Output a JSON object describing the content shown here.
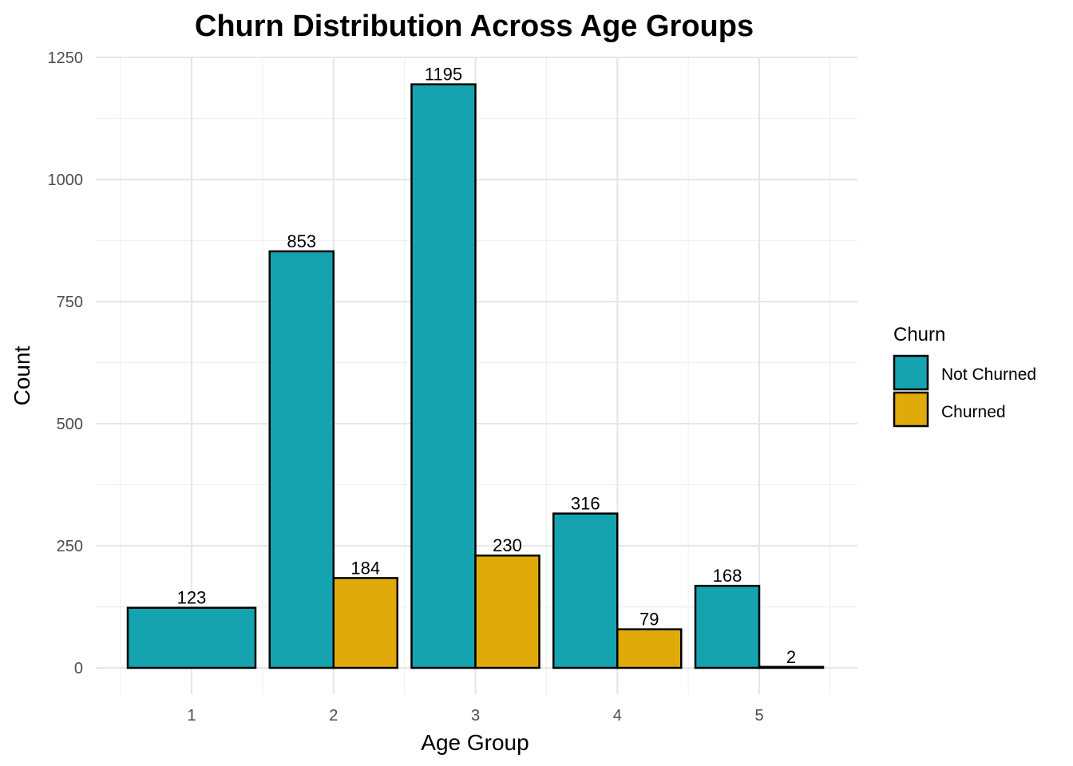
{
  "chart_data": {
    "type": "bar",
    "title": "Churn Distribution Across Age Groups",
    "xlabel": "Age Group",
    "ylabel": "Count",
    "categories": [
      "1",
      "2",
      "3",
      "4",
      "5"
    ],
    "series": [
      {
        "name": "Not Churned",
        "color": "#16a3b0",
        "values": [
          123,
          853,
          1195,
          316,
          168
        ]
      },
      {
        "name": "Churned",
        "color": "#e0aa0b",
        "values": [
          null,
          184,
          230,
          79,
          2
        ]
      }
    ],
    "ylim": [
      0,
      1250
    ],
    "yticks": [
      0,
      250,
      500,
      750,
      1000,
      1250
    ],
    "grid": true,
    "legend": {
      "title": "Churn",
      "position": "right"
    }
  }
}
